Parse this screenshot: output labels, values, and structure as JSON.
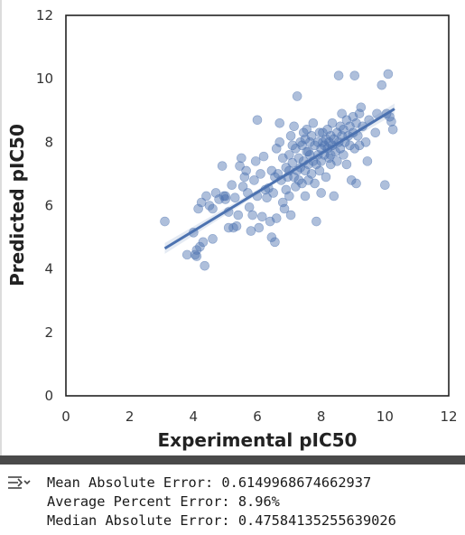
{
  "chart_data": {
    "type": "scatter",
    "title": "",
    "xlabel": "Experimental pIC50",
    "ylabel": "Predicted pIC50",
    "xlim": [
      0,
      12
    ],
    "ylim": [
      0,
      12
    ],
    "xticks": [
      "0",
      "2",
      "4",
      "6",
      "8",
      "10",
      "12"
    ],
    "yticks": [
      "0",
      "2",
      "4",
      "6",
      "8",
      "10",
      "12"
    ],
    "grid": false,
    "point_color": "#4c72b0",
    "regression": {
      "x": [
        3.1,
        10.3
      ],
      "y": [
        4.65,
        9.05
      ],
      "color": "#4c72b0"
    },
    "points": [
      [
        3.1,
        5.5
      ],
      [
        3.8,
        4.45
      ],
      [
        4.0,
        5.15
      ],
      [
        4.05,
        4.45
      ],
      [
        4.1,
        4.6
      ],
      [
        4.1,
        4.4
      ],
      [
        4.15,
        5.9
      ],
      [
        4.2,
        4.7
      ],
      [
        4.25,
        6.1
      ],
      [
        4.3,
        4.85
      ],
      [
        4.35,
        4.1
      ],
      [
        4.4,
        6.3
      ],
      [
        4.5,
        6.0
      ],
      [
        4.6,
        5.9
      ],
      [
        4.6,
        4.95
      ],
      [
        4.7,
        6.4
      ],
      [
        4.8,
        6.2
      ],
      [
        4.9,
        7.25
      ],
      [
        4.95,
        6.3
      ],
      [
        5.0,
        6.3
      ],
      [
        5.0,
        6.2
      ],
      [
        5.1,
        5.3
      ],
      [
        5.1,
        5.8
      ],
      [
        5.2,
        6.65
      ],
      [
        5.25,
        5.3
      ],
      [
        5.3,
        6.25
      ],
      [
        5.35,
        5.35
      ],
      [
        5.4,
        5.7
      ],
      [
        5.45,
        7.25
      ],
      [
        5.5,
        7.5
      ],
      [
        5.55,
        6.6
      ],
      [
        5.6,
        6.9
      ],
      [
        5.65,
        7.1
      ],
      [
        5.7,
        6.4
      ],
      [
        5.75,
        5.95
      ],
      [
        5.8,
        5.2
      ],
      [
        5.85,
        5.7
      ],
      [
        5.9,
        6.8
      ],
      [
        5.95,
        7.4
      ],
      [
        6.0,
        8.7
      ],
      [
        6.0,
        6.3
      ],
      [
        6.05,
        5.3
      ],
      [
        6.1,
        7.0
      ],
      [
        6.15,
        5.65
      ],
      [
        6.2,
        7.55
      ],
      [
        6.25,
        6.5
      ],
      [
        6.3,
        6.25
      ],
      [
        6.35,
        6.55
      ],
      [
        6.4,
        5.5
      ],
      [
        6.45,
        7.1
      ],
      [
        6.45,
        5.0
      ],
      [
        6.5,
        6.4
      ],
      [
        6.55,
        4.85
      ],
      [
        6.55,
        6.9
      ],
      [
        6.6,
        7.8
      ],
      [
        6.6,
        5.6
      ],
      [
        6.65,
        7.0
      ],
      [
        6.7,
        8.0
      ],
      [
        6.7,
        8.6
      ],
      [
        6.75,
        6.8
      ],
      [
        6.8,
        7.5
      ],
      [
        6.8,
        6.1
      ],
      [
        6.85,
        5.9
      ],
      [
        6.9,
        7.2
      ],
      [
        6.9,
        6.5
      ],
      [
        6.95,
        6.9
      ],
      [
        7.0,
        7.6
      ],
      [
        7.0,
        7.1
      ],
      [
        7.0,
        6.3
      ],
      [
        7.05,
        8.2
      ],
      [
        7.05,
        5.7
      ],
      [
        7.1,
        7.9
      ],
      [
        7.1,
        7.35
      ],
      [
        7.15,
        6.9
      ],
      [
        7.15,
        8.5
      ],
      [
        7.2,
        6.6
      ],
      [
        7.2,
        7.8
      ],
      [
        7.25,
        9.45
      ],
      [
        7.25,
        7.1
      ],
      [
        7.3,
        6.8
      ],
      [
        7.3,
        7.5
      ],
      [
        7.35,
        8.0
      ],
      [
        7.35,
        7.2
      ],
      [
        7.4,
        6.7
      ],
      [
        7.4,
        7.9
      ],
      [
        7.45,
        8.3
      ],
      [
        7.45,
        7.4
      ],
      [
        7.5,
        6.3
      ],
      [
        7.5,
        7.1
      ],
      [
        7.5,
        8.1
      ],
      [
        7.55,
        7.7
      ],
      [
        7.55,
        8.4
      ],
      [
        7.6,
        7.3
      ],
      [
        7.6,
        6.8
      ],
      [
        7.65,
        8.0
      ],
      [
        7.65,
        7.6
      ],
      [
        7.7,
        8.2
      ],
      [
        7.7,
        7.0
      ],
      [
        7.75,
        7.4
      ],
      [
        7.75,
        8.6
      ],
      [
        7.8,
        6.7
      ],
      [
        7.8,
        7.9
      ],
      [
        7.85,
        5.5
      ],
      [
        7.85,
        7.3
      ],
      [
        7.9,
        8.0
      ],
      [
        7.9,
        7.6
      ],
      [
        7.95,
        8.3
      ],
      [
        7.95,
        7.1
      ],
      [
        8.0,
        7.8
      ],
      [
        8.0,
        6.4
      ],
      [
        8.0,
        7.4
      ],
      [
        8.05,
        8.0
      ],
      [
        8.05,
        8.3
      ],
      [
        8.1,
        7.6
      ],
      [
        8.1,
        7.9
      ],
      [
        8.15,
        8.1
      ],
      [
        8.15,
        6.9
      ],
      [
        8.2,
        7.8
      ],
      [
        8.2,
        8.4
      ],
      [
        8.25,
        7.5
      ],
      [
        8.25,
        8.0
      ],
      [
        8.3,
        8.2
      ],
      [
        8.3,
        7.3
      ],
      [
        8.35,
        8.6
      ],
      [
        8.35,
        7.9
      ],
      [
        8.4,
        8.1
      ],
      [
        8.4,
        6.3
      ],
      [
        8.45,
        7.7
      ],
      [
        8.5,
        8.3
      ],
      [
        8.5,
        7.4
      ],
      [
        8.55,
        10.1
      ],
      [
        8.55,
        8.0
      ],
      [
        8.6,
        8.5
      ],
      [
        8.6,
        7.8
      ],
      [
        8.65,
        8.2
      ],
      [
        8.65,
        8.9
      ],
      [
        8.7,
        7.6
      ],
      [
        8.7,
        8.4
      ],
      [
        8.75,
        8.0
      ],
      [
        8.8,
        8.7
      ],
      [
        8.8,
        7.3
      ],
      [
        8.85,
        8.2
      ],
      [
        8.9,
        8.5
      ],
      [
        8.9,
        7.9
      ],
      [
        8.95,
        6.8
      ],
      [
        9.0,
        8.8
      ],
      [
        9.0,
        8.3
      ],
      [
        9.05,
        10.1
      ],
      [
        9.05,
        7.8
      ],
      [
        9.1,
        8.6
      ],
      [
        9.1,
        6.7
      ],
      [
        9.15,
        8.2
      ],
      [
        9.2,
        8.9
      ],
      [
        9.2,
        7.9
      ],
      [
        9.25,
        9.1
      ],
      [
        9.3,
        8.5
      ],
      [
        9.4,
        8.0
      ],
      [
        9.45,
        7.4
      ],
      [
        9.5,
        8.7
      ],
      [
        9.7,
        8.3
      ],
      [
        9.75,
        8.9
      ],
      [
        9.9,
        9.8
      ],
      [
        10.0,
        6.65
      ],
      [
        10.05,
        8.9
      ],
      [
        10.1,
        10.15
      ],
      [
        10.2,
        8.65
      ],
      [
        10.25,
        8.4
      ],
      [
        10.15,
        8.8
      ],
      [
        8.3,
        7.6
      ],
      [
        7.6,
        7.7
      ]
    ]
  },
  "output": {
    "icon": "output-expand-icon",
    "lines": [
      "Mean Absolute Error: 0.6149968674662937",
      "Average Percent Error: 8.96%",
      "Median Absolute Error: 0.47584135255639026"
    ]
  }
}
